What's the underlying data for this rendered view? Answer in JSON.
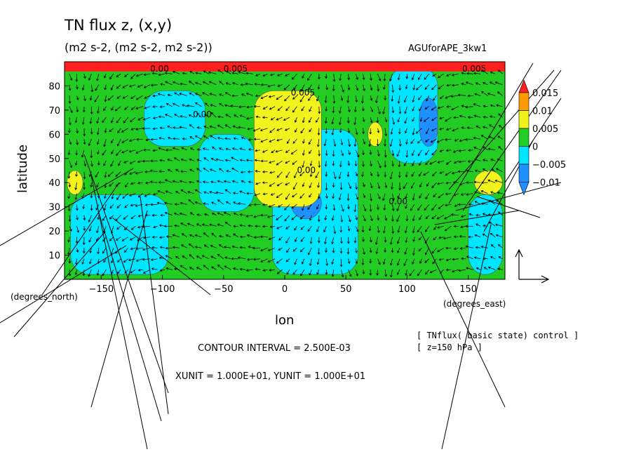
{
  "figure": {
    "title": "TN flux z, (x,y)",
    "units": "(m2 s-2, (m2 s-2, m2 s-2))",
    "dataset": "AGUforAPE_3kw1",
    "contour_interval": "CONTOUR INTERVAL = 2.500E-03",
    "vector_scale": "XUNIT = 1.000E+01, YUNIT = 1.000E+01",
    "variable_info": "[ TNflux( basic state) control ]",
    "level_info": "[ z=150 hPa ]",
    "xunit_text": "(degrees_east)",
    "yunit_text": "(degrees_north)"
  },
  "colors": {
    "neg_0.01": "#1e90ff",
    "neg_0.005": "#00e5ff",
    "zero": "#22cc22",
    "pos_0.005": "#f2f21c",
    "pos_0.01": "#ff9900",
    "pos_0.015": "#ff1f1f"
  },
  "chart_data": {
    "type": "heatmap",
    "title": "TN flux z, (x,y)",
    "xlabel": "lon",
    "ylabel": "latitude",
    "xlim": [
      -180,
      180
    ],
    "ylim": [
      0,
      90
    ],
    "xticks": [
      "−150",
      "−100",
      "−50",
      "0",
      "50",
      "100",
      "150"
    ],
    "yticks": [
      "10",
      "20",
      "30",
      "40",
      "50",
      "60",
      "70",
      "80"
    ],
    "colorbar": {
      "levels": [
        "0.015",
        "0.01",
        "0.005",
        "0",
        "−0.005",
        "−0.01"
      ],
      "bins": [
        -0.01,
        -0.005,
        0,
        0.005,
        0.01,
        0.015
      ]
    },
    "contour_labels": [
      {
        "text": "0.00",
        "lon": -110,
        "lat": 86
      },
      {
        "text": "0.005",
        "lon": -50,
        "lat": 86
      },
      {
        "text": "0.005",
        "lon": 145,
        "lat": 86
      },
      {
        "text": "0.005",
        "lon": 5,
        "lat": 76
      },
      {
        "text": "0.00",
        "lon": -75,
        "lat": 67
      },
      {
        "text": "0.00",
        "lon": 10,
        "lat": 44
      },
      {
        "text": "0.00",
        "lon": 85,
        "lat": 31
      }
    ],
    "regions": [
      {
        "class": "zero",
        "note": "background"
      },
      {
        "class": "neg_0.005",
        "lon": [
          -115,
          -65
        ],
        "lat": [
          55,
          78
        ]
      },
      {
        "class": "neg_0.005",
        "lon": [
          -70,
          -25
        ],
        "lat": [
          28,
          60
        ]
      },
      {
        "class": "neg_0.005",
        "lon": [
          -10,
          60
        ],
        "lat": [
          2,
          62
        ]
      },
      {
        "class": "neg_0.005",
        "lon": [
          85,
          125
        ],
        "lat": [
          48,
          88
        ]
      },
      {
        "class": "neg_0.005",
        "lon": [
          150,
          178
        ],
        "lat": [
          2,
          35
        ]
      },
      {
        "class": "neg_0.005",
        "lon": [
          -175,
          -95
        ],
        "lat": [
          2,
          35
        ]
      },
      {
        "class": "neg_0.01",
        "lon": [
          110,
          125
        ],
        "lat": [
          55,
          75
        ]
      },
      {
        "class": "neg_0.01",
        "lon": [
          5,
          30
        ],
        "lat": [
          25,
          38
        ]
      },
      {
        "class": "pos_0.005",
        "lon": [
          -25,
          30
        ],
        "lat": [
          30,
          78
        ]
      },
      {
        "class": "pos_0.005",
        "lon": [
          68,
          80
        ],
        "lat": [
          55,
          65
        ]
      },
      {
        "class": "pos_0.005",
        "lon": [
          155,
          178
        ],
        "lat": [
          35,
          45
        ]
      },
      {
        "class": "pos_0.005",
        "lon": [
          -178,
          -165
        ],
        "lat": [
          35,
          45
        ]
      },
      {
        "class": "pos_0.015",
        "lon": [
          -180,
          180
        ],
        "lat": [
          86,
          90
        ]
      }
    ],
    "grid": false,
    "legend": "right"
  }
}
